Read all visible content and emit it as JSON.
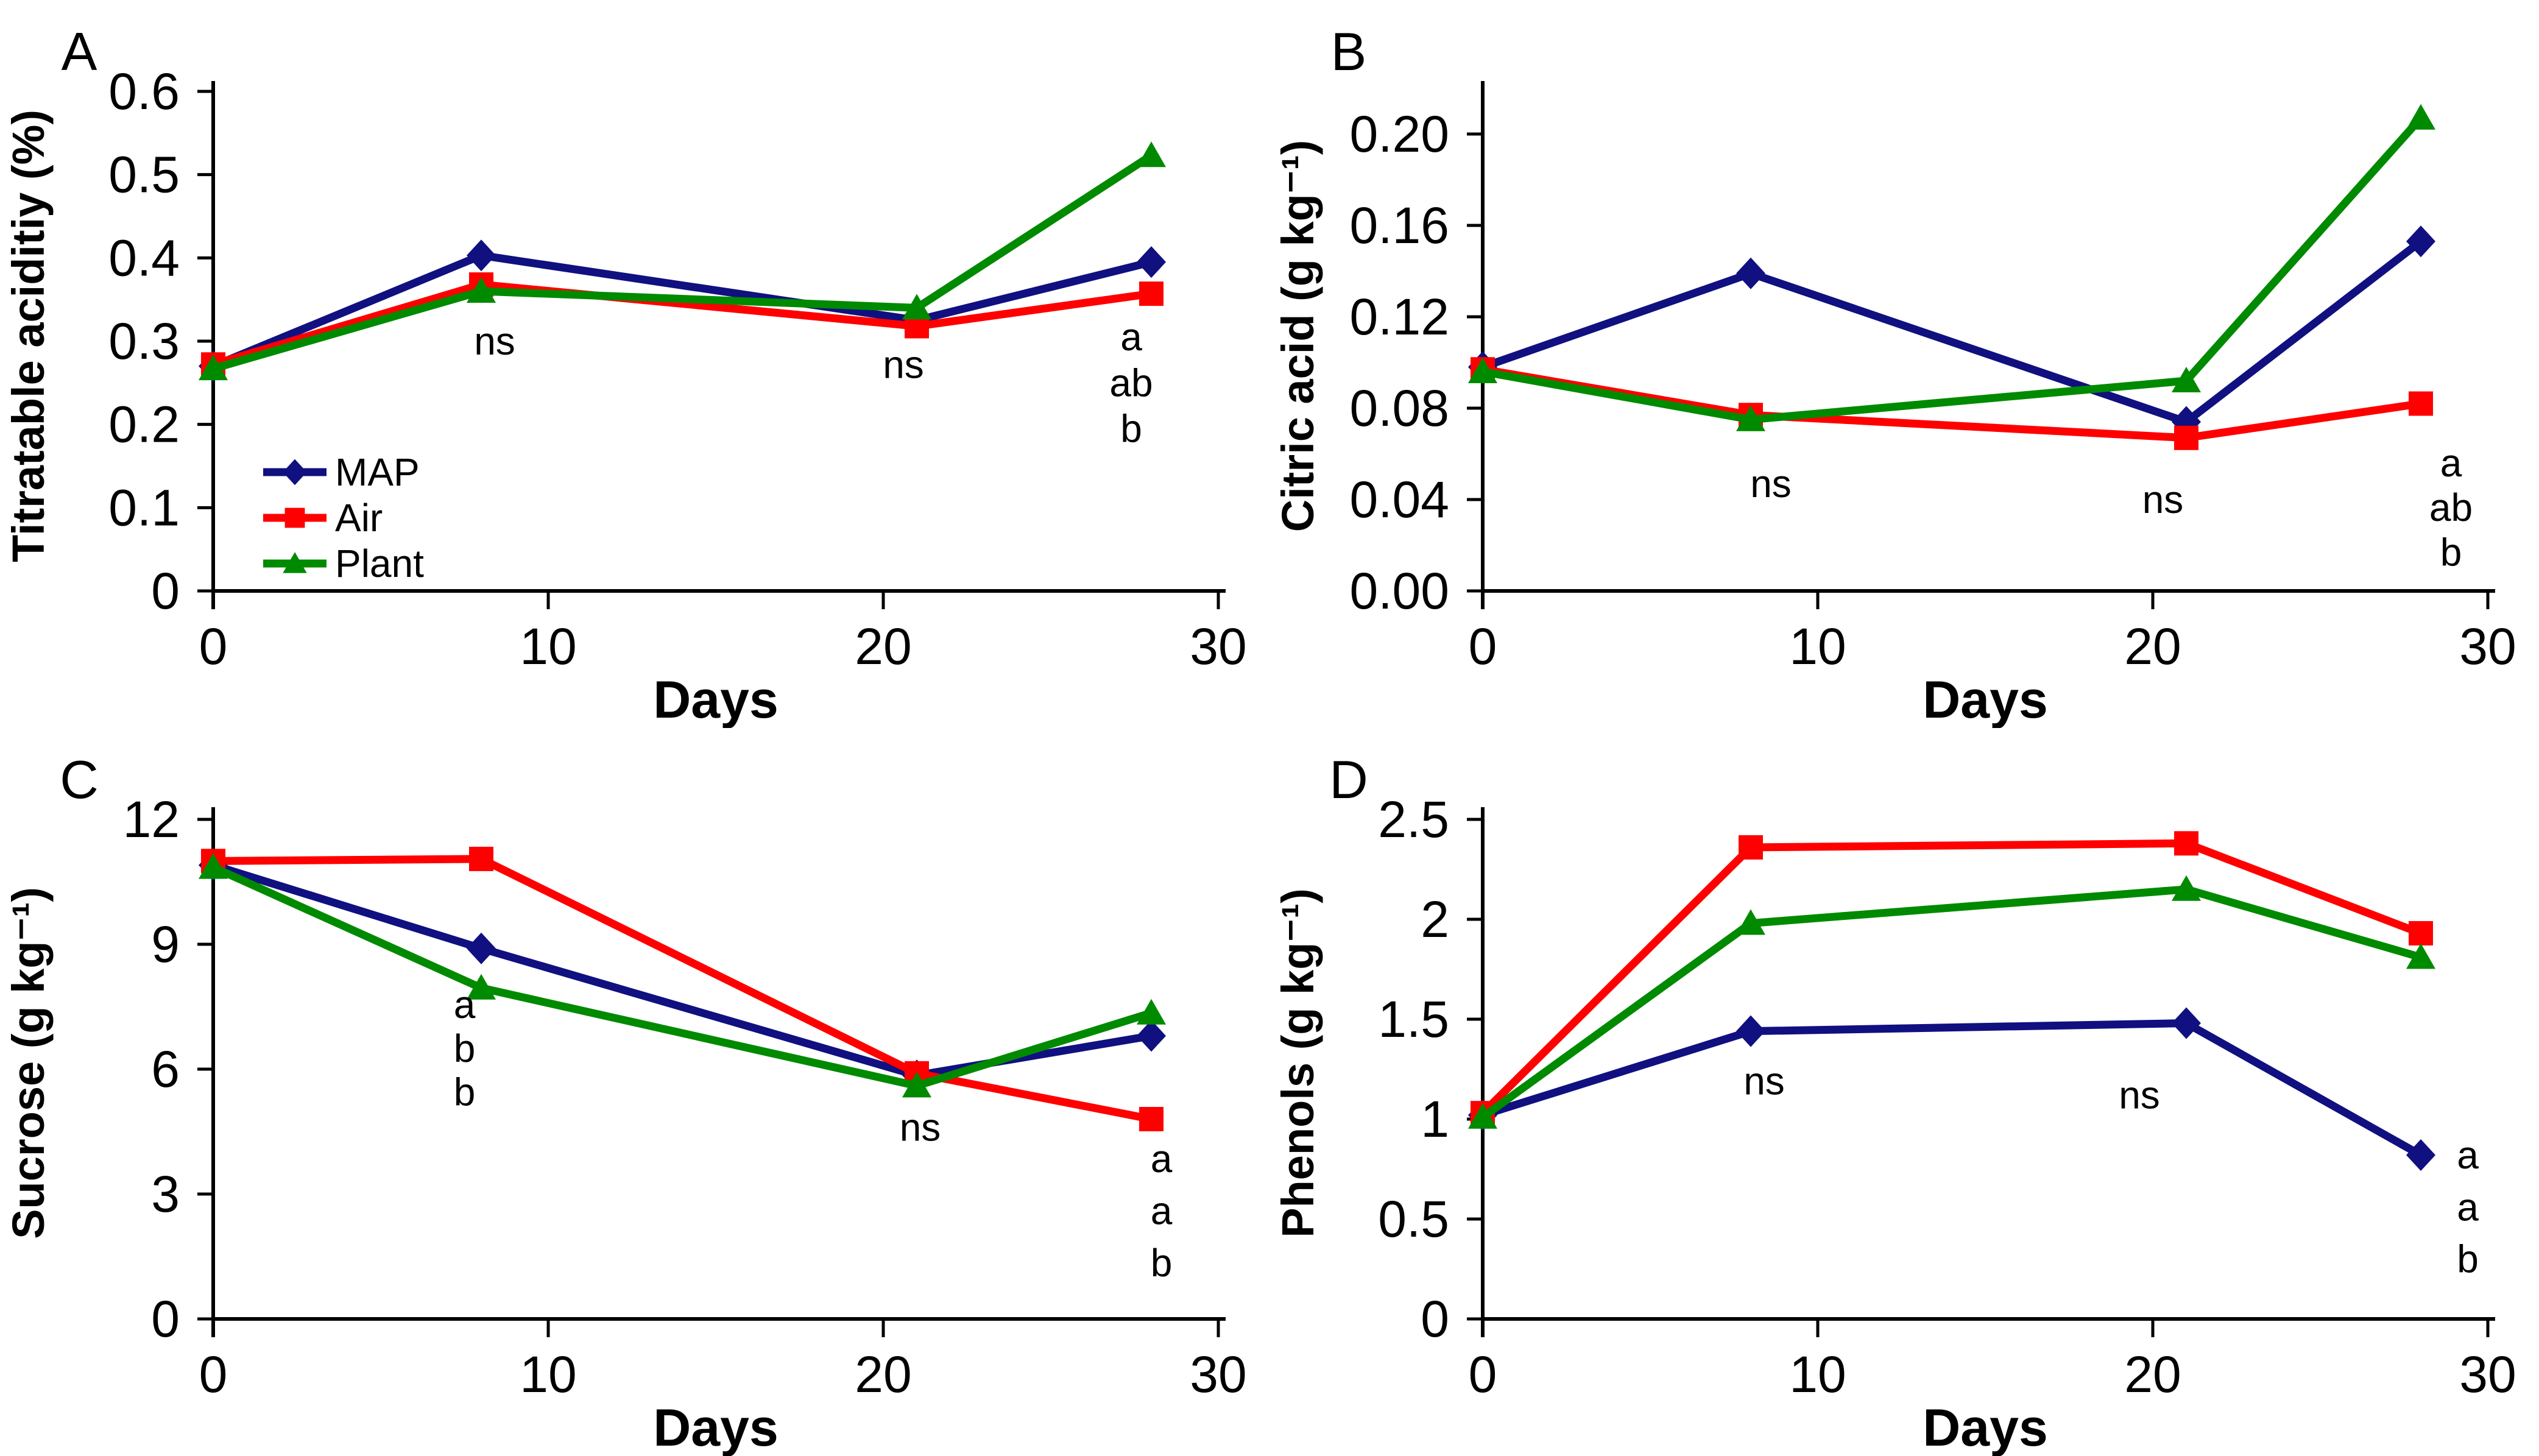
{
  "figure": {
    "background": "#FFFFFF",
    "text_color": "#000000",
    "panel_letters": [
      "A",
      "B",
      "C",
      "D"
    ]
  },
  "series_styles": [
    {
      "name": "MAP",
      "color": "#101080",
      "marker": "diamond"
    },
    {
      "name": "Air",
      "color": "#FF0000",
      "marker": "square"
    },
    {
      "name": "Plant",
      "color": "#008A00",
      "marker": "triangle"
    }
  ],
  "chart_data": [
    {
      "panel_label": "A",
      "type": "line",
      "xlabel": "Days",
      "ylabel": "Titratable aciditiy (%)",
      "x": [
        0,
        8,
        21,
        28
      ],
      "xlim": [
        0,
        30
      ],
      "xticks": [
        0,
        10,
        20,
        30
      ],
      "ylim": [
        0,
        0.6
      ],
      "yticks": [
        0,
        0.1,
        0.2,
        0.3,
        0.4,
        0.5,
        0.6
      ],
      "ytick_labels": [
        "0",
        "0.1",
        "0.2",
        "0.3",
        "0.4",
        "0.5",
        "0.6"
      ],
      "grid": false,
      "series": [
        {
          "name": "MAP",
          "values": [
            0.27,
            0.403,
            0.325,
            0.395
          ]
        },
        {
          "name": "Air",
          "values": [
            0.272,
            0.368,
            0.318,
            0.357
          ]
        },
        {
          "name": "Plant",
          "values": [
            0.267,
            0.36,
            0.34,
            0.523
          ]
        }
      ],
      "annotations": [
        {
          "x": 8.4,
          "y": 0.3,
          "text": "ns"
        },
        {
          "x": 20.6,
          "y": 0.272,
          "text": "ns"
        },
        {
          "x": 27.4,
          "y": 0.305,
          "text": "a"
        },
        {
          "x": 27.4,
          "y": 0.25,
          "text": "ab"
        },
        {
          "x": 27.4,
          "y": 0.195,
          "text": "b"
        }
      ],
      "show_legend": true,
      "legend_labels": [
        "MAP",
        "Air",
        "Plant"
      ],
      "legend_position": "inside-lower-left"
    },
    {
      "panel_label": "B",
      "type": "line",
      "xlabel": "Days",
      "ylabel": "Citric acid (g kg⁻¹)",
      "x": [
        0,
        8,
        21,
        28
      ],
      "xlim": [
        0,
        30
      ],
      "xticks": [
        0,
        10,
        20,
        30
      ],
      "ylim": [
        0,
        0.2
      ],
      "yticks": [
        0,
        0.04,
        0.08,
        0.12,
        0.16,
        0.2
      ],
      "ytick_labels": [
        "0.00",
        "0.04",
        "0.08",
        "0.12",
        "0.16",
        "0.20"
      ],
      "grid": false,
      "series": [
        {
          "name": "MAP",
          "values": [
            0.098,
            0.139,
            0.074,
            0.153
          ]
        },
        {
          "name": "Air",
          "values": [
            0.097,
            0.077,
            0.067,
            0.082
          ]
        },
        {
          "name": "Plant",
          "values": [
            0.096,
            0.075,
            0.092,
            0.207
          ]
        }
      ],
      "annotations": [
        {
          "x": 8.6,
          "y": 0.047,
          "text": "ns"
        },
        {
          "x": 20.3,
          "y": 0.04,
          "text": "ns"
        },
        {
          "x": 28.9,
          "y": 0.056,
          "text": "a"
        },
        {
          "x": 28.9,
          "y": 0.0365,
          "text": "ab"
        },
        {
          "x": 28.9,
          "y": 0.017,
          "text": "b"
        }
      ],
      "show_legend": false
    },
    {
      "panel_label": "C",
      "type": "line",
      "xlabel": "Days",
      "ylabel": "Sucrose (g kg⁻¹)",
      "x": [
        0,
        8,
        21,
        28
      ],
      "xlim": [
        0,
        30
      ],
      "xticks": [
        0,
        10,
        20,
        30
      ],
      "ylim": [
        0,
        12
      ],
      "yticks": [
        0,
        3,
        6,
        9,
        12
      ],
      "ytick_labels": [
        "0",
        "3",
        "6",
        "9",
        "12"
      ],
      "grid": false,
      "series": [
        {
          "name": "MAP",
          "values": [
            10.9,
            8.9,
            5.85,
            6.8
          ]
        },
        {
          "name": "Air",
          "values": [
            11.0,
            11.05,
            5.9,
            4.8
          ]
        },
        {
          "name": "Plant",
          "values": [
            10.85,
            7.95,
            5.6,
            7.35
          ]
        }
      ],
      "annotations": [
        {
          "x": 7.5,
          "y": 7.55,
          "text": "a"
        },
        {
          "x": 7.5,
          "y": 6.5,
          "text": "b"
        },
        {
          "x": 7.5,
          "y": 5.45,
          "text": "b"
        },
        {
          "x": 21.1,
          "y": 4.6,
          "text": "ns"
        },
        {
          "x": 28.3,
          "y": 3.85,
          "text": "a"
        },
        {
          "x": 28.3,
          "y": 2.6,
          "text": "a"
        },
        {
          "x": 28.3,
          "y": 1.35,
          "text": "b"
        }
      ],
      "show_legend": false
    },
    {
      "panel_label": "D",
      "type": "line",
      "xlabel": "Days",
      "ylabel": "Phenols (g kg⁻¹)",
      "x": [
        0,
        8,
        21,
        28
      ],
      "xlim": [
        0,
        30
      ],
      "xticks": [
        0,
        10,
        20,
        30
      ],
      "ylim": [
        0,
        2.5
      ],
      "yticks": [
        0,
        0.5,
        1,
        1.5,
        2,
        2.5
      ],
      "ytick_labels": [
        "0",
        "0.5",
        "1",
        "1.5",
        "2",
        "2.5"
      ],
      "grid": false,
      "series": [
        {
          "name": "MAP",
          "values": [
            1.02,
            1.44,
            1.48,
            0.82
          ]
        },
        {
          "name": "Air",
          "values": [
            1.03,
            2.36,
            2.38,
            1.93
          ]
        },
        {
          "name": "Plant",
          "values": [
            1.01,
            1.98,
            2.15,
            1.81
          ]
        }
      ],
      "annotations": [
        {
          "x": 8.4,
          "y": 1.19,
          "text": "ns"
        },
        {
          "x": 19.6,
          "y": 1.12,
          "text": "ns"
        },
        {
          "x": 29.4,
          "y": 0.82,
          "text": "a"
        },
        {
          "x": 29.4,
          "y": 0.56,
          "text": "a"
        },
        {
          "x": 29.4,
          "y": 0.3,
          "text": "b"
        }
      ],
      "show_legend": false
    }
  ]
}
